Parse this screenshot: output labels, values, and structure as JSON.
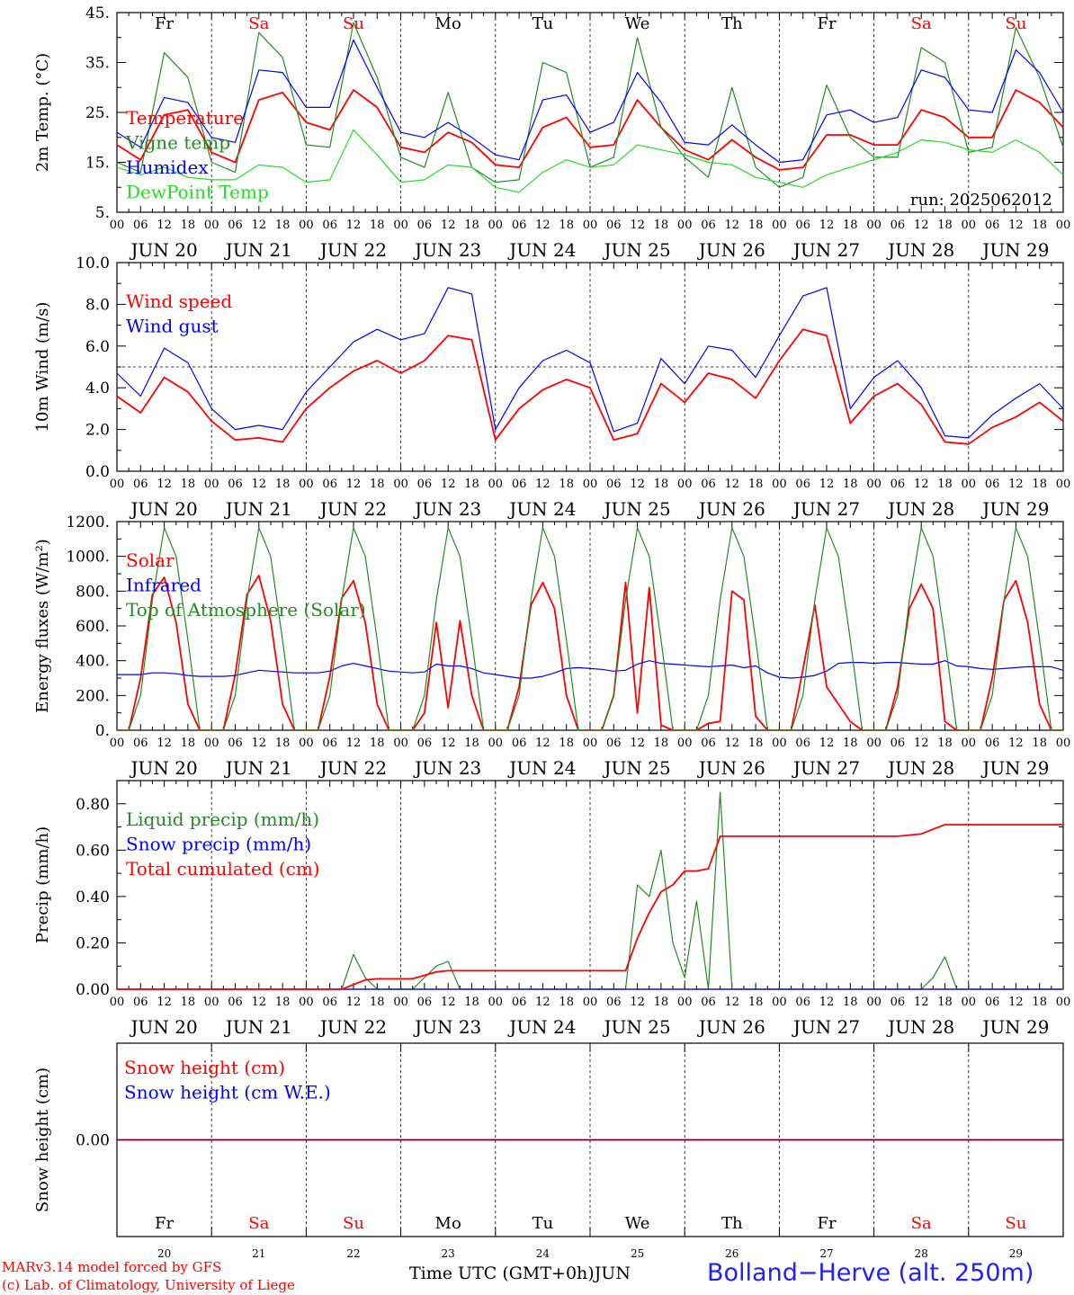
{
  "footer": {
    "model": "MARv3.14 model forced by GFS",
    "lab": "(c) Lab. of Climatology, University of Liege",
    "time_label": "Time UTC (GMT+0h)JUN",
    "station": "Bolland−Herve (alt. 250m)"
  },
  "colors": {
    "red": "#ff0000",
    "green": "#228b22",
    "blue": "#0000ff",
    "lightgreen": "#22dd22",
    "weekend": "#ff0000",
    "weekday": "#000000"
  },
  "chart_data": [
    {
      "type": "line",
      "ylabel": "2m Temp. (°C)",
      "ylim": [
        5,
        45
      ],
      "yticks": [
        5,
        15,
        25,
        35,
        45
      ],
      "ytick_labels": [
        "5.",
        "15.",
        "25.",
        "35.",
        "45."
      ],
      "annotation": "run: 2025062012",
      "day_letters": [
        "Fr",
        "Sa",
        "Su",
        "Mo",
        "Tu",
        "We",
        "Th",
        "Fr",
        "Sa",
        "Su"
      ],
      "date_labels": [
        "JUN 20",
        "JUN 21",
        "JUN 22",
        "JUN 23",
        "JUN 24",
        "JUN 25",
        "JUN 26",
        "JUN 27",
        "JUN 28",
        "JUN 29"
      ],
      "hour_labels": [
        "00",
        "06",
        "12",
        "18"
      ],
      "end_hour_label": "00",
      "x_step_hours": 6,
      "series": [
        {
          "name": "Temperature",
          "color": "red",
          "values": [
            18.5,
            15.5,
            24.5,
            25.5,
            17.0,
            15.0,
            27.5,
            29.0,
            23.0,
            21.5,
            29.5,
            26.0,
            18.0,
            17.0,
            21.0,
            19.0,
            14.5,
            14.0,
            22.0,
            24.0,
            18.0,
            18.5,
            27.5,
            22.0,
            17.5,
            15.5,
            19.5,
            16.0,
            13.5,
            14.0,
            20.5,
            20.5,
            18.5,
            18.5,
            25.5,
            24.0,
            20.0,
            20.0,
            29.5,
            27.0,
            22.0
          ]
        },
        {
          "name": "Vigne temp",
          "color": "green",
          "values": [
            15.0,
            13.0,
            37.0,
            32.0,
            15.0,
            13.0,
            41.0,
            36.0,
            18.5,
            18.0,
            43.0,
            32.0,
            16.0,
            14.0,
            29.0,
            14.0,
            11.0,
            11.5,
            35.0,
            33.0,
            14.0,
            16.0,
            40.0,
            22.0,
            16.0,
            12.0,
            30.0,
            14.0,
            10.0,
            12.0,
            30.5,
            20.0,
            16.0,
            16.0,
            38.0,
            35.0,
            17.0,
            18.0,
            42.0,
            32.0,
            18.0
          ]
        },
        {
          "name": "Humidex",
          "color": "blue",
          "values": [
            21.0,
            18.0,
            28.0,
            27.0,
            20.0,
            19.0,
            33.5,
            33.0,
            26.0,
            26.0,
            39.5,
            30.0,
            21.0,
            20.0,
            23.0,
            20.0,
            16.5,
            15.5,
            27.5,
            28.5,
            21.0,
            23.0,
            33.0,
            27.0,
            19.0,
            18.5,
            22.5,
            18.5,
            15.0,
            15.5,
            24.5,
            25.5,
            23.0,
            24.0,
            33.5,
            32.0,
            25.5,
            25.0,
            37.5,
            33.0,
            25.0
          ]
        },
        {
          "name": "DewPoint Temp",
          "color": "lightgreen",
          "values": [
            14.0,
            12.5,
            14.0,
            12.0,
            11.5,
            11.5,
            14.5,
            14.0,
            11.0,
            11.5,
            21.5,
            16.5,
            11.0,
            11.5,
            14.5,
            14.0,
            10.0,
            9.0,
            13.0,
            15.5,
            14.0,
            14.5,
            18.5,
            17.5,
            16.5,
            15.0,
            14.5,
            12.0,
            11.0,
            10.0,
            12.5,
            14.0,
            15.5,
            17.0,
            19.5,
            19.0,
            17.5,
            17.0,
            19.5,
            17.0,
            12.5
          ]
        }
      ]
    },
    {
      "type": "line",
      "ylabel": "10m Wind (m/s)",
      "ylim": [
        0,
        10
      ],
      "yticks": [
        0,
        2,
        4,
        6,
        8,
        10
      ],
      "ytick_labels": [
        "0.0",
        "2.0",
        "4.0",
        "6.0",
        "8.0",
        "10.0"
      ],
      "reference_line": 5,
      "date_labels": [
        "JUN 20",
        "JUN 21",
        "JUN 22",
        "JUN 23",
        "JUN 24",
        "JUN 25",
        "JUN 26",
        "JUN 27",
        "JUN 28",
        "JUN 29"
      ],
      "hour_labels": [
        "00",
        "06",
        "12",
        "18"
      ],
      "end_hour_label": "00",
      "x_step_hours": 6,
      "series": [
        {
          "name": "Wind speed",
          "color": "red",
          "values": [
            3.6,
            2.8,
            4.5,
            3.8,
            2.4,
            1.5,
            1.6,
            1.4,
            3.0,
            4.0,
            4.8,
            5.3,
            4.7,
            5.3,
            6.5,
            6.3,
            1.5,
            3.0,
            3.9,
            4.4,
            4.0,
            1.5,
            1.8,
            4.2,
            3.3,
            4.7,
            4.4,
            3.5,
            5.3,
            6.8,
            6.5,
            2.3,
            3.6,
            4.2,
            3.2,
            1.4,
            1.3,
            2.1,
            2.6,
            3.3,
            2.4
          ]
        },
        {
          "name": "Wind gust",
          "color": "blue",
          "values": [
            4.7,
            3.6,
            5.9,
            5.2,
            3.0,
            2.0,
            2.2,
            2.0,
            3.8,
            5.0,
            6.2,
            6.8,
            6.3,
            6.6,
            8.8,
            8.5,
            2.0,
            4.0,
            5.3,
            5.8,
            5.2,
            1.9,
            2.3,
            5.4,
            4.2,
            6.0,
            5.8,
            4.5,
            6.5,
            8.4,
            8.8,
            3.0,
            4.5,
            5.3,
            4.0,
            1.7,
            1.6,
            2.7,
            3.5,
            4.2,
            3.0
          ]
        }
      ]
    },
    {
      "type": "line",
      "ylabel": "Energy fluxes (W/m²)",
      "ylim": [
        0,
        1200
      ],
      "yticks": [
        0,
        200,
        400,
        600,
        800,
        1000,
        1200
      ],
      "ytick_labels": [
        "0.",
        "200.",
        "400.",
        "600.",
        "800.",
        "1000.",
        "1200."
      ],
      "date_labels": [
        "JUN 20",
        "JUN 21",
        "JUN 22",
        "JUN 23",
        "JUN 24",
        "JUN 25",
        "JUN 26",
        "JUN 27",
        "JUN 28",
        "JUN 29"
      ],
      "hour_labels": [
        "00",
        "06",
        "12",
        "18"
      ],
      "end_hour_label": "00",
      "x_step_hours": 3,
      "series": [
        {
          "name": "Solar",
          "color": "red",
          "values": [
            0,
            0,
            300,
            780,
            880,
            620,
            150,
            0,
            0,
            0,
            320,
            780,
            890,
            630,
            150,
            0,
            0,
            0,
            310,
            760,
            860,
            620,
            150,
            0,
            0,
            0,
            100,
            620,
            130,
            630,
            200,
            0,
            0,
            0,
            250,
            720,
            850,
            700,
            200,
            0,
            0,
            0,
            200,
            850,
            100,
            820,
            30,
            0,
            0,
            0,
            40,
            50,
            800,
            750,
            80,
            0,
            0,
            0,
            350,
            720,
            250,
            150,
            50,
            0,
            0,
            0,
            250,
            700,
            840,
            700,
            50,
            0,
            0,
            0,
            300,
            750,
            860,
            620,
            150,
            0,
            0
          ]
        },
        {
          "name": "Infrared",
          "color": "blue",
          "values": [
            320,
            320,
            320,
            330,
            330,
            325,
            315,
            310,
            310,
            310,
            315,
            330,
            345,
            340,
            335,
            330,
            330,
            330,
            340,
            370,
            385,
            370,
            355,
            340,
            335,
            330,
            335,
            380,
            370,
            370,
            355,
            330,
            320,
            310,
            300,
            300,
            310,
            330,
            355,
            360,
            355,
            350,
            340,
            345,
            380,
            400,
            385,
            380,
            375,
            370,
            365,
            370,
            375,
            360,
            370,
            330,
            305,
            300,
            305,
            315,
            340,
            385,
            390,
            390,
            385,
            390,
            390,
            385,
            380,
            380,
            400,
            370,
            365,
            355,
            350,
            355,
            360,
            365,
            365,
            365,
            345
          ]
        },
        {
          "name": "Top of Atmosphere (Solar)",
          "color": "green",
          "values": [
            0,
            0,
            200,
            750,
            1165,
            1000,
            520,
            0,
            0,
            0,
            200,
            750,
            1165,
            1000,
            520,
            0,
            0,
            0,
            200,
            750,
            1165,
            1000,
            520,
            0,
            0,
            0,
            200,
            750,
            1165,
            1000,
            520,
            0,
            0,
            0,
            200,
            750,
            1165,
            1000,
            520,
            0,
            0,
            0,
            200,
            750,
            1165,
            1000,
            520,
            0,
            0,
            0,
            200,
            750,
            1165,
            1000,
            520,
            0,
            0,
            0,
            200,
            750,
            1165,
            1000,
            520,
            0,
            0,
            0,
            200,
            750,
            1165,
            1000,
            520,
            0,
            0,
            0,
            200,
            750,
            1165,
            1000,
            520,
            0,
            0
          ]
        }
      ]
    },
    {
      "type": "line",
      "ylabel": "Precip (mm/h)",
      "ylim": [
        0,
        0.9
      ],
      "yticks": [
        0,
        0.2,
        0.4,
        0.6,
        0.8
      ],
      "ytick_labels": [
        "0.00",
        "0.20",
        "0.40",
        "0.60",
        "0.80"
      ],
      "date_labels": [
        "JUN 20",
        "JUN 21",
        "JUN 22",
        "JUN 23",
        "JUN 24",
        "JUN 25",
        "JUN 26",
        "JUN 27",
        "JUN 28",
        "JUN 29"
      ],
      "hour_labels": [
        "00",
        "06",
        "12",
        "18"
      ],
      "end_hour_label": "00",
      "x_step_hours": 3,
      "series": [
        {
          "name": "Liquid precip (mm/h)",
          "color": "green",
          "values": [
            0,
            0,
            0,
            0,
            0,
            0,
            0,
            0,
            0,
            0,
            0,
            0,
            0,
            0,
            0,
            0,
            0,
            0,
            0,
            0,
            0.15,
            0.05,
            0,
            0,
            0,
            0,
            0.05,
            0.1,
            0.12,
            0,
            0,
            0,
            0,
            0,
            0,
            0,
            0,
            0,
            0,
            0,
            0,
            0,
            0,
            0,
            0.45,
            0.4,
            0.6,
            0.2,
            0.05,
            0.38,
            0,
            0.85,
            0,
            0,
            0,
            0,
            0,
            0,
            0,
            0,
            0,
            0,
            0,
            0,
            0,
            0,
            0,
            0,
            0,
            0.05,
            0.14,
            0,
            0,
            0,
            0,
            0,
            0,
            0,
            0,
            0,
            0
          ]
        },
        {
          "name": "Snow precip (mm/h)",
          "color": "blue",
          "values": [
            0,
            0,
            0,
            0,
            0,
            0,
            0,
            0,
            0,
            0,
            0,
            0,
            0,
            0,
            0,
            0,
            0,
            0,
            0,
            0,
            0,
            0,
            0,
            0,
            0,
            0,
            0,
            0,
            0,
            0,
            0,
            0,
            0,
            0,
            0,
            0,
            0,
            0,
            0,
            0,
            0,
            0,
            0,
            0,
            0,
            0,
            0,
            0,
            0,
            0,
            0,
            0,
            0,
            0,
            0,
            0,
            0,
            0,
            0,
            0,
            0,
            0,
            0,
            0,
            0,
            0,
            0,
            0,
            0,
            0,
            0,
            0,
            0,
            0,
            0,
            0,
            0,
            0,
            0,
            0,
            0
          ]
        },
        {
          "name": "Total cumulated (cm)",
          "color": "red",
          "values": [
            0,
            0,
            0,
            0,
            0,
            0,
            0,
            0,
            0,
            0,
            0,
            0,
            0,
            0,
            0,
            0,
            0,
            0,
            0,
            0,
            0.02,
            0.04,
            0.045,
            0.045,
            0.045,
            0.045,
            0.06,
            0.075,
            0.08,
            0.08,
            0.08,
            0.08,
            0.08,
            0.08,
            0.08,
            0.08,
            0.08,
            0.08,
            0.08,
            0.08,
            0.08,
            0.08,
            0.08,
            0.08,
            0.22,
            0.33,
            0.42,
            0.45,
            0.51,
            0.51,
            0.52,
            0.66,
            0.66,
            0.66,
            0.66,
            0.66,
            0.66,
            0.66,
            0.66,
            0.66,
            0.66,
            0.66,
            0.66,
            0.66,
            0.66,
            0.66,
            0.66,
            0.665,
            0.67,
            0.69,
            0.71,
            0.71,
            0.71,
            0.71,
            0.71,
            0.71,
            0.71,
            0.71,
            0.71,
            0.71,
            0.71
          ]
        }
      ]
    },
    {
      "type": "line",
      "ylabel": "Snow height (cm)",
      "ylim": [
        -1,
        1
      ],
      "yticks": [
        0
      ],
      "ytick_labels": [
        "0.00"
      ],
      "day_letters": [
        "Fr",
        "Sa",
        "Su",
        "Mo",
        "Tu",
        "We",
        "Th",
        "Fr",
        "Sa",
        "Su"
      ],
      "day_numbers": [
        "20",
        "21",
        "22",
        "23",
        "24",
        "25",
        "26",
        "27",
        "28",
        "29"
      ],
      "x_step_hours": 24,
      "series": [
        {
          "name": "Snow height (cm)",
          "color": "red",
          "values": [
            0,
            0,
            0,
            0,
            0,
            0,
            0,
            0,
            0,
            0,
            0
          ]
        },
        {
          "name": "Snow height (cm W.E.)",
          "color": "blue",
          "values": [
            0,
            0,
            0,
            0,
            0,
            0,
            0,
            0,
            0,
            0,
            0
          ]
        }
      ]
    }
  ]
}
